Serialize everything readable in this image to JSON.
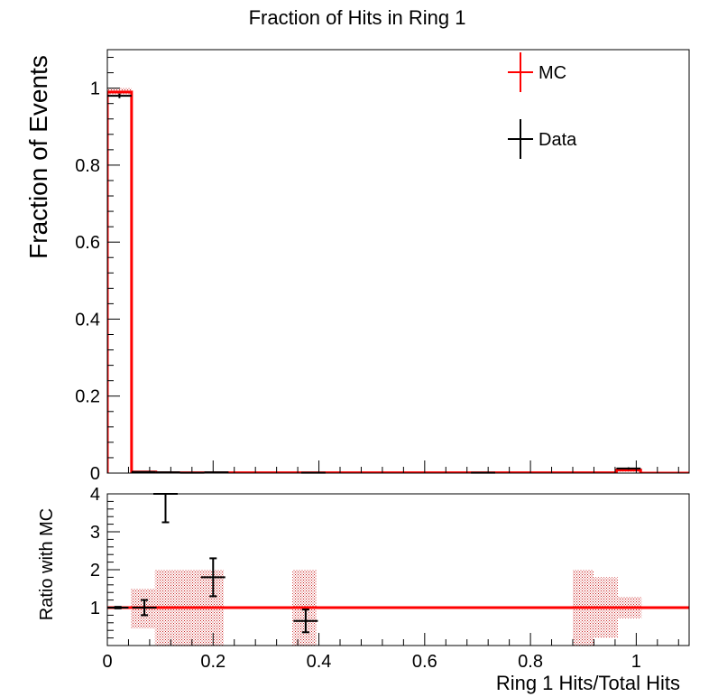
{
  "chart_data": [
    {
      "type": "histogram",
      "panel": "main",
      "title": "Fraction of Hits in Ring 1",
      "ylabel": "Fraction of Events",
      "xlim": [
        0,
        1.1
      ],
      "ylim": [
        0,
        1.1
      ],
      "bin_width": 0.0458,
      "x_ticks": [
        0,
        0.2,
        0.4,
        0.6,
        0.8,
        1
      ],
      "x_tick_labels": [
        "0",
        "0.2",
        "0.4",
        "0.6",
        "0.8",
        "1"
      ],
      "y_ticks": [
        0,
        0.2,
        0.4,
        0.6,
        0.8,
        1
      ],
      "y_tick_labels": [
        "0",
        "0.2",
        "0.4",
        "0.6",
        "0.8",
        "1"
      ],
      "legend": [
        {
          "label": "MC",
          "color": "#ff0000"
        },
        {
          "label": "Data",
          "color": "#000000"
        }
      ],
      "legend_position": "top-right",
      "series": [
        {
          "name": "MC",
          "color": "#ff0000",
          "bins": [
            {
              "x0": 0.0,
              "x1": 0.0458,
              "y": 0.99,
              "err": 0.01
            },
            {
              "x0": 0.0458,
              "x1": 0.0917,
              "y": 0.003,
              "err": 0.002
            },
            {
              "x0": 0.0917,
              "x1": 0.9625,
              "y": 0.001,
              "err": 0.001
            },
            {
              "x0": 0.9625,
              "x1": 1.0083,
              "y": 0.008,
              "err": 0.004
            },
            {
              "x0": 1.0083,
              "x1": 1.1,
              "y": 0.0,
              "err": 0.0
            }
          ]
        },
        {
          "name": "Data",
          "color": "#000000",
          "points": [
            {
              "x": 0.0229,
              "y": 0.98,
              "xerr": 0.0229,
              "yerr": 0.006
            },
            {
              "x": 0.0687,
              "y": 0.003,
              "xerr": 0.0229,
              "yerr": 0.001
            },
            {
              "x": 0.1146,
              "y": 0.002,
              "xerr": 0.0229,
              "yerr": 0.001
            },
            {
              "x": 0.1604,
              "y": 0.001,
              "xerr": 0.0229,
              "yerr": 0.001
            },
            {
              "x": 0.2063,
              "y": 0.002,
              "xerr": 0.0229,
              "yerr": 0.001
            },
            {
              "x": 0.3896,
              "y": 0.001,
              "xerr": 0.0229,
              "yerr": 0.001
            },
            {
              "x": 0.7104,
              "y": 0.001,
              "xerr": 0.0229,
              "yerr": 0.001
            },
            {
              "x": 0.9854,
              "y": 0.012,
              "xerr": 0.0229,
              "yerr": 0.003
            }
          ]
        }
      ]
    },
    {
      "type": "ratio",
      "panel": "ratio",
      "ylabel": "Ratio with MC",
      "xlabel": "Ring 1 Hits/Total Hits",
      "xlim": [
        0,
        1.1
      ],
      "ylim": [
        0,
        4
      ],
      "x_ticks": [
        0,
        0.2,
        0.4,
        0.6,
        0.8,
        1
      ],
      "x_tick_labels": [
        "0",
        "0.2",
        "0.4",
        "0.6",
        "0.8",
        "1"
      ],
      "y_ticks": [
        1,
        2,
        3,
        4
      ],
      "y_tick_labels": [
        "1",
        "2",
        "3",
        "4"
      ],
      "reference_line": 1,
      "mc_uncertainty_bands": [
        {
          "x0": 0.0,
          "x1": 0.045,
          "ylo": 0.97,
          "yhi": 1.03
        },
        {
          "x0": 0.045,
          "x1": 0.09,
          "ylo": 0.45,
          "yhi": 1.5
        },
        {
          "x0": 0.09,
          "x1": 0.22,
          "ylo": 0.0,
          "yhi": 2.0
        },
        {
          "x0": 0.35,
          "x1": 0.395,
          "ylo": 0.0,
          "yhi": 2.0
        },
        {
          "x0": 0.88,
          "x1": 0.92,
          "ylo": 0.0,
          "yhi": 2.0
        },
        {
          "x0": 0.92,
          "x1": 0.965,
          "ylo": 0.2,
          "yhi": 1.8
        },
        {
          "x0": 0.965,
          "x1": 1.01,
          "ylo": 0.72,
          "yhi": 1.28
        }
      ],
      "points": [
        {
          "x": 0.02,
          "y": 1.0,
          "xerr": 0.02,
          "yerr": 0.02
        },
        {
          "x": 0.07,
          "y": 1.0,
          "xerr": 0.023,
          "yerr": 0.2
        },
        {
          "x": 0.11,
          "y": 4.0,
          "xerr": 0.023,
          "yerr": 0.75
        },
        {
          "x": 0.2,
          "y": 1.8,
          "xerr": 0.023,
          "yerr": 0.5
        },
        {
          "x": 0.375,
          "y": 0.65,
          "xerr": 0.023,
          "yerr": 0.3
        }
      ]
    }
  ]
}
